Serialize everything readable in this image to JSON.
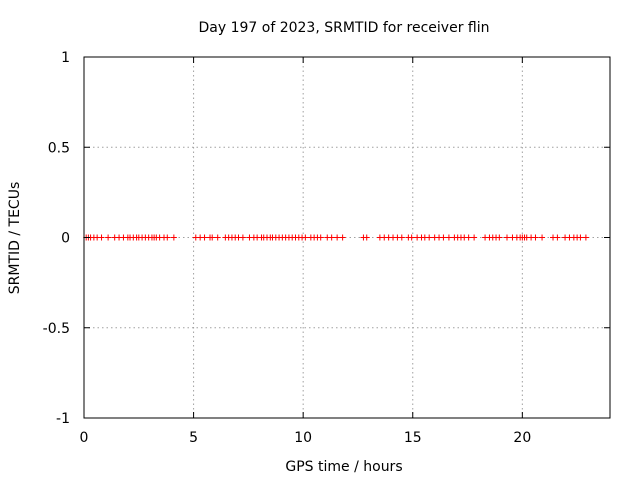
{
  "chart_data": {
    "type": "scatter",
    "title": "Day 197 of 2023, SRMTID for receiver flin",
    "xlabel": "GPS time / hours",
    "ylabel": "SRMTID / TECUs",
    "xlim": [
      0,
      24
    ],
    "ylim": [
      -1,
      1
    ],
    "xticks": [
      0,
      5,
      10,
      15,
      20
    ],
    "xtick_labels": [
      "0",
      "5",
      "10",
      "15",
      "20"
    ],
    "yticks": [
      1,
      0.5,
      0,
      -0.5,
      -1
    ],
    "ytick_labels": [
      "1",
      "0.5",
      "0",
      "-0.5",
      "-1"
    ],
    "grid": true,
    "marker": "+",
    "marker_color": "#ff0000",
    "series": [
      {
        "name": "SRMTID",
        "y": 0,
        "x": [
          0.1,
          0.2,
          0.3,
          0.45,
          0.6,
          0.8,
          1.1,
          1.4,
          1.6,
          1.8,
          2.0,
          2.1,
          2.25,
          2.4,
          2.5,
          2.65,
          2.8,
          2.95,
          3.1,
          3.2,
          3.3,
          3.45,
          3.65,
          3.8,
          4.1,
          5.1,
          5.3,
          5.5,
          5.75,
          5.85,
          6.1,
          6.45,
          6.6,
          6.75,
          6.9,
          7.05,
          7.25,
          7.55,
          7.75,
          7.9,
          8.1,
          8.2,
          8.35,
          8.5,
          8.6,
          8.75,
          8.9,
          9.05,
          9.2,
          9.35,
          9.5,
          9.65,
          9.8,
          9.95,
          10.1,
          10.35,
          10.5,
          10.65,
          10.8,
          11.1,
          11.3,
          11.55,
          11.8,
          12.75,
          12.9,
          13.5,
          13.7,
          13.9,
          14.1,
          14.3,
          14.5,
          14.8,
          14.95,
          15.2,
          15.4,
          15.55,
          15.75,
          16.0,
          16.2,
          16.4,
          16.65,
          16.9,
          17.05,
          17.2,
          17.35,
          17.55,
          17.8,
          18.3,
          18.5,
          18.65,
          18.8,
          18.95,
          19.3,
          19.55,
          19.75,
          19.9,
          20.0,
          20.1,
          20.2,
          20.4,
          20.6,
          20.9,
          21.4,
          21.6,
          21.95,
          22.15,
          22.35,
          22.5,
          22.65,
          22.9
        ]
      }
    ]
  }
}
